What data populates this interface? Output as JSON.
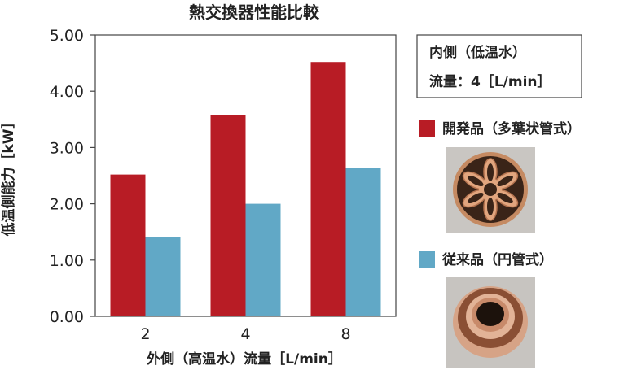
{
  "chart_data": {
    "type": "bar",
    "title": "熱交換器性能比較",
    "xlabel": "外側（高温水）流量［L/min］",
    "ylabel": "低温側能力［kW］",
    "categories": [
      "2",
      "4",
      "8"
    ],
    "ylim": [
      0,
      5
    ],
    "yticks": [
      "0.00",
      "1.00",
      "2.00",
      "3.00",
      "4.00",
      "5.00"
    ],
    "grid": false,
    "series": [
      {
        "name": "開発品（多葉状管式）",
        "color": "#b81c25",
        "values": [
          2.52,
          3.58,
          4.52
        ]
      },
      {
        "name": "従来品（円管式）",
        "color": "#61a8c6",
        "values": [
          1.41,
          2.0,
          2.64
        ]
      }
    ],
    "legend_position": "right",
    "annotation": {
      "line1": "内側（低温水）",
      "line2": "流量：4［L/min］"
    }
  }
}
